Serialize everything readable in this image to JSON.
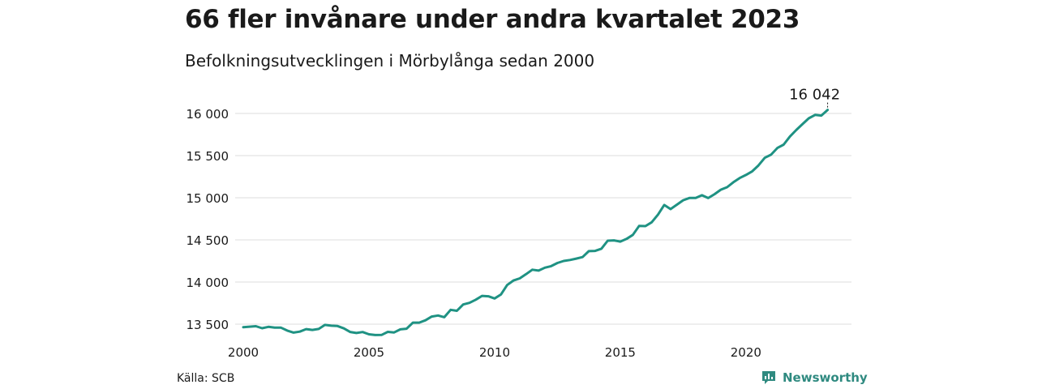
{
  "header": {
    "title": "66 fler invånare under andra kvartalet 2023",
    "subtitle": "Befolkningsutvecklingen i Mörbylånga sedan 2000"
  },
  "footer": {
    "source": "Källa: SCB",
    "brand": "Newsworthy"
  },
  "colors": {
    "line": "#1f9283",
    "grid": "#dcdcdc",
    "text": "#1a1a1a",
    "brand": "#2f8a80"
  },
  "chart_data": {
    "type": "line",
    "title": "66 fler invånare under andra kvartalet 2023",
    "subtitle": "Befolkningsutvecklingen i Mörbylånga sedan 2000",
    "xlabel": "",
    "ylabel": "",
    "xlim": [
      2000,
      2024.2
    ],
    "ylim": [
      13350,
      16150
    ],
    "grid": true,
    "x_ticks": [
      2000,
      2005,
      2010,
      2015,
      2020
    ],
    "x_tick_labels": [
      "2000",
      "2005",
      "2010",
      "2015",
      "2020"
    ],
    "y_ticks": [
      13500,
      14000,
      14500,
      15000,
      15500,
      16000
    ],
    "y_tick_labels": [
      "13 500",
      "14 000",
      "14 500",
      "15 000",
      "15 500",
      "16 000"
    ],
    "annotation": {
      "text": "16 042",
      "x": 2023.25,
      "y": 16042
    },
    "series": [
      {
        "x": [
          2000,
          2000.25,
          2000.5,
          2000.75,
          2001,
          2001.25,
          2001.5,
          2001.75,
          2002,
          2002.25,
          2002.5,
          2002.75,
          2003,
          2003.25,
          2003.5,
          2003.75,
          2004,
          2004.25,
          2004.5,
          2004.75,
          2005,
          2005.25,
          2005.5,
          2005.75,
          2006,
          2006.25,
          2006.5,
          2006.75,
          2007,
          2007.25,
          2007.5,
          2007.75,
          2008,
          2008.25,
          2008.5,
          2008.75,
          2009,
          2009.25,
          2009.5,
          2009.75,
          2010,
          2010.25,
          2010.5,
          2010.75,
          2011,
          2011.25,
          2011.5,
          2011.75,
          2012,
          2012.25,
          2012.5,
          2012.75,
          2013,
          2013.25,
          2013.5,
          2013.75,
          2014,
          2014.25,
          2014.5,
          2014.75,
          2015,
          2015.25,
          2015.5,
          2015.75,
          2016,
          2016.25,
          2016.5,
          2016.75,
          2017,
          2017.25,
          2017.5,
          2017.75,
          2018,
          2018.25,
          2018.5,
          2018.75,
          2019,
          2019.25,
          2019.5,
          2019.75,
          2020,
          2020.25,
          2020.5,
          2020.75,
          2021,
          2021.25,
          2021.5,
          2021.75,
          2022,
          2022.25,
          2022.5,
          2022.75,
          2023,
          2023.25
        ],
        "values": [
          13464,
          13470,
          13476,
          13452,
          13468,
          13460,
          13459,
          13424,
          13400,
          13412,
          13441,
          13432,
          13443,
          13491,
          13482,
          13478,
          13450,
          13408,
          13395,
          13407,
          13380,
          13371,
          13372,
          13409,
          13402,
          13438,
          13446,
          13518,
          13518,
          13546,
          13590,
          13603,
          13583,
          13670,
          13659,
          13734,
          13753,
          13790,
          13836,
          13831,
          13805,
          13852,
          13964,
          14018,
          14043,
          14093,
          14146,
          14136,
          14170,
          14188,
          14226,
          14250,
          14262,
          14278,
          14296,
          14366,
          14369,
          14395,
          14490,
          14494,
          14480,
          14512,
          14560,
          14665,
          14663,
          14709,
          14800,
          14914,
          14865,
          14917,
          14970,
          14997,
          14998,
          15030,
          14996,
          15042,
          15095,
          15125,
          15184,
          15234,
          15270,
          15313,
          15384,
          15474,
          15511,
          15590,
          15630,
          15727,
          15803,
          15874,
          15942,
          15983,
          15975,
          16042
        ]
      }
    ]
  }
}
